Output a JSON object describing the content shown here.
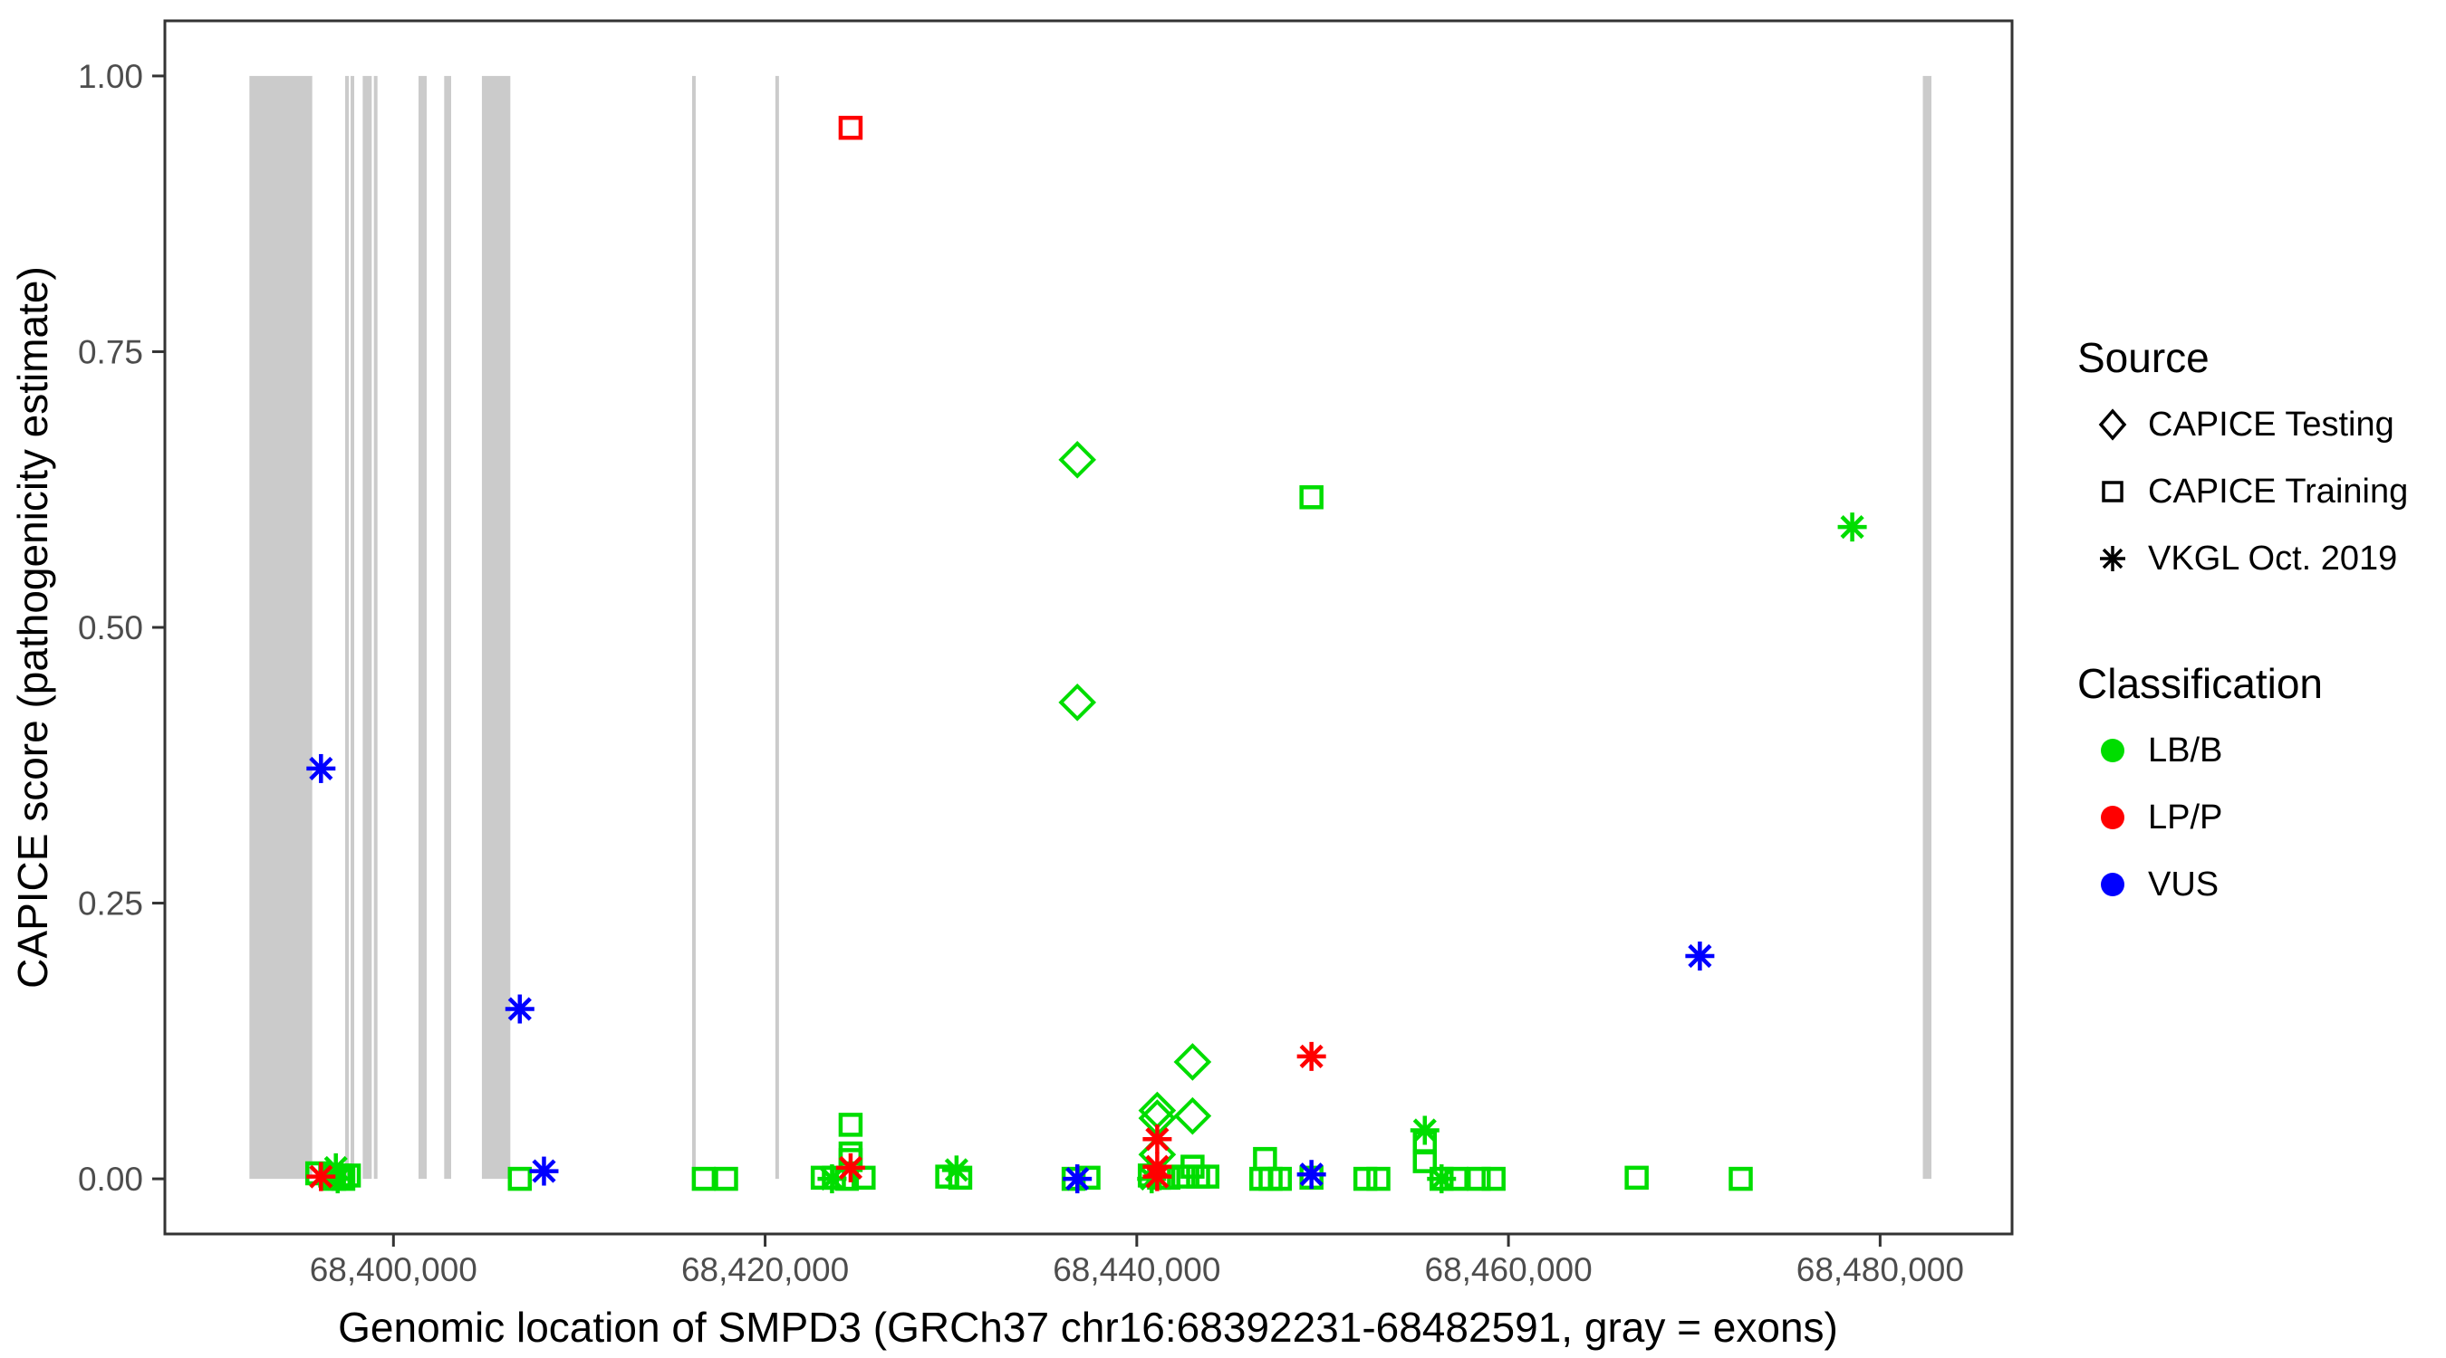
{
  "colors": {
    "lbb_green": "#00DD00",
    "lpp_red": "#FF0000",
    "vus_blue": "#0000FF",
    "exon_gray": "#CBCBCB",
    "panel_border": "#333333",
    "tick_text": "#4d4d4d"
  },
  "legend": {
    "source": {
      "title": "Source",
      "items": [
        {
          "label": "CAPICE Testing",
          "symbol": "diamond"
        },
        {
          "label": "CAPICE Training",
          "symbol": "square"
        },
        {
          "label": "VKGL Oct. 2019",
          "symbol": "asterisk"
        }
      ]
    },
    "classification": {
      "title": "Classification",
      "items": [
        {
          "label": "LB/B",
          "color": "#00DD00"
        },
        {
          "label": "LP/P",
          "color": "#FF0000"
        },
        {
          "label": "VUS",
          "color": "#0000FF"
        }
      ]
    }
  },
  "chart_data": {
    "type": "scatter",
    "title": "",
    "xlabel": "Genomic location of SMPD3 (GRCh37 chr16:68392231-68482591, gray = exons)",
    "ylabel": "CAPICE score (pathogenicity estimate)",
    "x_axis": {
      "min": 68387700,
      "max": 68487100,
      "ticks": [
        68400000,
        68420000,
        68440000,
        68460000,
        68480000
      ],
      "tick_labels": [
        "68,400,000",
        "68,420,000",
        "68,440,000",
        "68,460,000",
        "68,480,000"
      ]
    },
    "y_axis": {
      "min": -0.05,
      "max": 1.05,
      "ticks": [
        0,
        0.25,
        0.5,
        0.75,
        1
      ],
      "tick_labels": [
        "0.00",
        "0.25",
        "0.50",
        "0.75",
        "1.00"
      ]
    },
    "grid": "off",
    "legend_position": "right",
    "exons_note": "gray vertical bands = exons, spanning score 0 to 1",
    "exons": [
      [
        68392250,
        68395630
      ],
      [
        68397400,
        68397600
      ],
      [
        68397695,
        68397855
      ],
      [
        68398345,
        68398830
      ],
      [
        68398945,
        68399075
      ],
      [
        68401350,
        68401790
      ],
      [
        68402730,
        68403105
      ],
      [
        68404760,
        68406290
      ],
      [
        68416070,
        68416260
      ],
      [
        68420550,
        68420740
      ],
      [
        68482300,
        68482760
      ]
    ],
    "series": [
      {
        "name": "CAPICE Testing / LB/B",
        "source": "CAPICE Testing",
        "classification": "LB/B",
        "marker": "diamond",
        "color": "#00DD00",
        "points": [
          [
            68436800,
            0.652
          ],
          [
            68436800,
            0.432
          ],
          [
            68441100,
            0.062
          ],
          [
            68441100,
            0.055
          ],
          [
            68441100,
            0.022
          ],
          [
            68443000,
            0.106
          ],
          [
            68443000,
            0.057
          ]
        ]
      },
      {
        "name": "CAPICE Training / LB/B",
        "source": "CAPICE Training",
        "classification": "LB/B",
        "marker": "square",
        "color": "#00DD00",
        "points": [
          [
            68449400,
            0.618
          ],
          [
            68424600,
            0.049
          ],
          [
            68424600,
            0.023
          ],
          [
            68424600,
            0.017
          ],
          [
            68395900,
            0.005
          ],
          [
            68396600,
            0.003
          ],
          [
            68397100,
            0.003
          ],
          [
            68397600,
            0.003
          ],
          [
            68396800,
            0.0
          ],
          [
            68397300,
            0.0
          ],
          [
            68406800,
            0.0
          ],
          [
            68416700,
            0.0
          ],
          [
            68417900,
            0.0
          ],
          [
            68423100,
            0.001
          ],
          [
            68423700,
            0.001
          ],
          [
            68424400,
            0.0
          ],
          [
            68425300,
            0.001
          ],
          [
            68429800,
            0.002
          ],
          [
            68430500,
            0.001
          ],
          [
            68436600,
            0.0
          ],
          [
            68437400,
            0.001
          ],
          [
            68440700,
            0.003
          ],
          [
            68441200,
            0.001
          ],
          [
            68441700,
            0.001
          ],
          [
            68442500,
            0.002
          ],
          [
            68443000,
            0.011
          ],
          [
            68443300,
            0.002
          ],
          [
            68443800,
            0.002
          ],
          [
            68446900,
            0.018
          ],
          [
            68446700,
            0.0
          ],
          [
            68447200,
            0.0
          ],
          [
            68447700,
            0.0
          ],
          [
            68449400,
            0.001
          ],
          [
            68452300,
            0.0
          ],
          [
            68453000,
            0.0
          ],
          [
            68455500,
            0.033
          ],
          [
            68455500,
            0.016
          ],
          [
            68456400,
            0.0
          ],
          [
            68457200,
            0.0
          ],
          [
            68458400,
            0.0
          ],
          [
            68459200,
            0.0
          ],
          [
            68466900,
            0.001
          ],
          [
            68472500,
            0.0
          ]
        ]
      },
      {
        "name": "CAPICE Training / LP/P",
        "source": "CAPICE Training",
        "classification": "LP/P",
        "marker": "square",
        "color": "#FF0000",
        "points": [
          [
            68424600,
            0.953
          ]
        ]
      },
      {
        "name": "VKGL Oct. 2019 / LB/B",
        "source": "VKGL Oct. 2019",
        "classification": "LB/B",
        "marker": "asterisk",
        "color": "#00DD00",
        "points": [
          [
            68396900,
            0.01
          ],
          [
            68397000,
            0.0
          ],
          [
            68423600,
            0.0
          ],
          [
            68430300,
            0.008
          ],
          [
            68440800,
            0.0
          ],
          [
            68455500,
            0.044
          ],
          [
            68456400,
            0.0
          ],
          [
            68478500,
            0.591
          ]
        ]
      },
      {
        "name": "VKGL Oct. 2019 / LP/P",
        "source": "VKGL Oct. 2019",
        "classification": "LP/P",
        "marker": "asterisk",
        "color": "#FF0000",
        "points": [
          [
            68396100,
            0.002
          ],
          [
            68424600,
            0.01
          ],
          [
            68441100,
            0.036
          ],
          [
            68441100,
            0.011
          ],
          [
            68441100,
            0.002
          ],
          [
            68449400,
            0.111
          ]
        ]
      },
      {
        "name": "VKGL Oct. 2019 / VUS",
        "source": "VKGL Oct. 2019",
        "classification": "VUS",
        "marker": "asterisk",
        "color": "#0000FF",
        "points": [
          [
            68396100,
            0.372
          ],
          [
            68406800,
            0.154
          ],
          [
            68408100,
            0.007
          ],
          [
            68436800,
            0.0
          ],
          [
            68449400,
            0.004
          ],
          [
            68470300,
            0.202
          ]
        ]
      }
    ]
  }
}
